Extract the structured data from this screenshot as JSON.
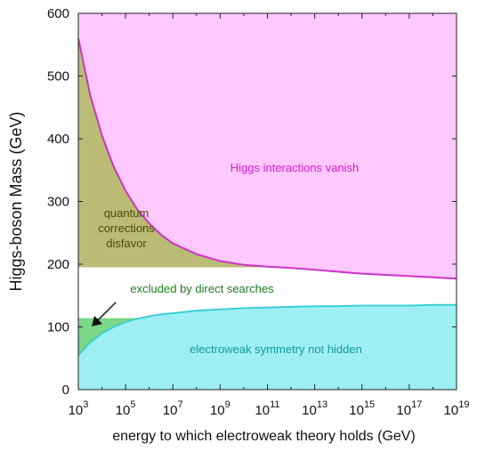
{
  "chart_data": {
    "type": "area",
    "xlabel": "energy to which electroweak theory holds (GeV)",
    "ylabel": "Higgs-boson Mass (GeV)",
    "x_scale": "log",
    "xlim_exponent": [
      3,
      19
    ],
    "ylim": [
      0,
      600
    ],
    "x_ticks": [
      {
        "base": "10",
        "exp": "3"
      },
      {
        "base": "10",
        "exp": "5"
      },
      {
        "base": "10",
        "exp": "7"
      },
      {
        "base": "10",
        "exp": "9"
      },
      {
        "base": "10",
        "exp": "11"
      },
      {
        "base": "10",
        "exp": "13"
      },
      {
        "base": "10",
        "exp": "15"
      },
      {
        "base": "10",
        "exp": "17"
      },
      {
        "base": "10",
        "exp": "19"
      }
    ],
    "y_ticks": [
      "0",
      "100",
      "200",
      "300",
      "400",
      "500",
      "600"
    ],
    "grid": false,
    "regions": [
      {
        "name": "Higgs interactions vanish",
        "color": "#ffc8ff",
        "edge_color": "#cc33cc",
        "boundary_x_exp": [
          3,
          3.5,
          4,
          4.5,
          5,
          5.5,
          6,
          6.5,
          7,
          8,
          9,
          10,
          11,
          12,
          13,
          14,
          15,
          16,
          17,
          18,
          19
        ],
        "boundary_y": [
          560,
          470,
          405,
          355,
          317,
          287,
          265,
          247,
          233,
          216,
          205,
          199,
          196,
          194,
          191,
          188,
          185,
          183,
          181,
          179,
          177
        ]
      },
      {
        "name": "quantum corrections disfavor",
        "color": "#bcbb76",
        "y_floor": 195
      },
      {
        "name": "electroweak symmetry not hidden",
        "color": "#9eeff3",
        "edge_color": "#3ccfd6",
        "boundary_x_exp": [
          3,
          3.5,
          4,
          4.5,
          5,
          5.5,
          6,
          6.5,
          7,
          8,
          9,
          10,
          11,
          12,
          13,
          14,
          15,
          16,
          17,
          18,
          19
        ],
        "boundary_y": [
          55,
          75,
          90,
          100,
          108,
          113,
          117,
          120,
          122,
          126,
          128,
          130,
          131,
          132,
          133,
          133,
          134,
          134,
          134,
          135,
          135
        ]
      },
      {
        "name": "excluded by direct searches",
        "color": "#78d888",
        "y_ceiling": 114
      }
    ],
    "annotations": [
      {
        "lines": [
          "Higgs interactions vanish"
        ],
        "color": "#cc22cc"
      },
      {
        "lines": [
          "quantum",
          "corrections",
          "disfavor"
        ],
        "color": "#4a4a10"
      },
      {
        "lines": [
          "excluded by direct searches"
        ],
        "color": "#207a20"
      },
      {
        "lines": [
          "electroweak symmetry not hidden"
        ],
        "color": "#129aa0"
      }
    ]
  }
}
